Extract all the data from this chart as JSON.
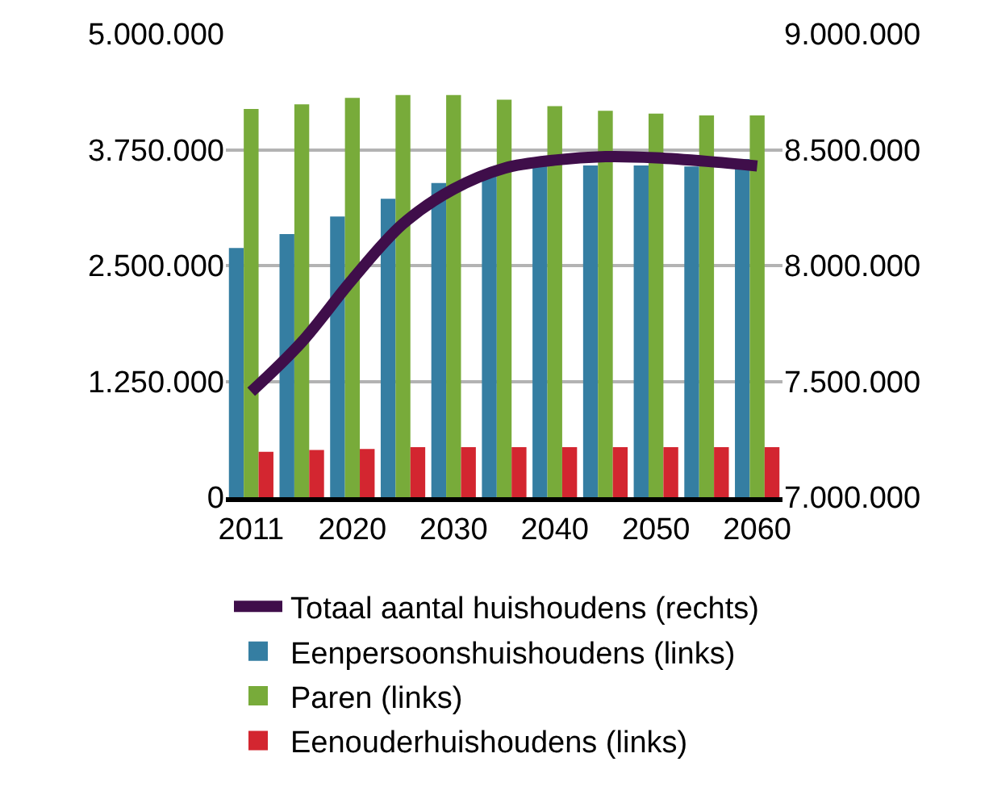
{
  "chart_data": {
    "type": "bar",
    "categories": [
      "2011",
      null,
      "2020",
      null,
      "2030",
      null,
      "2040",
      null,
      "2050",
      null,
      "2060"
    ],
    "series": [
      {
        "name": "Totaal aantal huishoudens (rechts)",
        "type": "line",
        "axis": "y2",
        "color": "#3f0e4a",
        "values": [
          7455000,
          7670000,
          7940000,
          8180000,
          8330000,
          8420000,
          8455000,
          8470000,
          8465000,
          8450000,
          8430000
        ]
      },
      {
        "name": "Eenpersoonshuishoudens (links)",
        "color": "#357ea2",
        "values": [
          2690000,
          2840000,
          3030000,
          3220000,
          3390000,
          3500000,
          3620000,
          3580000,
          3580000,
          3570000,
          3650000
        ]
      },
      {
        "name": "Paren (links)",
        "color": "#78ab3a",
        "values": [
          4190000,
          4240000,
          4310000,
          4340000,
          4340000,
          4290000,
          4220000,
          4170000,
          4140000,
          4120000,
          4120000
        ]
      },
      {
        "name": "Eenouderhuishoudens (links)",
        "color": "#d32630",
        "values": [
          490000,
          510000,
          520000,
          540000,
          540000,
          540000,
          540000,
          540000,
          540000,
          540000,
          540000
        ]
      }
    ],
    "ylim": [
      0,
      5000000
    ],
    "yticks": [
      0,
      {
        "value": 1250000,
        "label": "1.250.000"
      },
      {
        "value": 2500000,
        "label": "2.500.000"
      },
      {
        "value": 3750000,
        "label": "3.750.000"
      },
      {
        "value": 5000000,
        "label": "5.000.000"
      }
    ],
    "y2lim": [
      7000000,
      9000000
    ],
    "y2ticks": [
      {
        "value": 7000000,
        "label": "7.000.000"
      },
      {
        "value": 7500000,
        "label": "7.500.000"
      },
      {
        "value": 8000000,
        "label": "8.000.000"
      },
      {
        "value": 8500000,
        "label": "8.500.000"
      },
      {
        "value": 9000000,
        "label": "9.000.000"
      }
    ],
    "grid": "y",
    "legend": "bottom"
  }
}
